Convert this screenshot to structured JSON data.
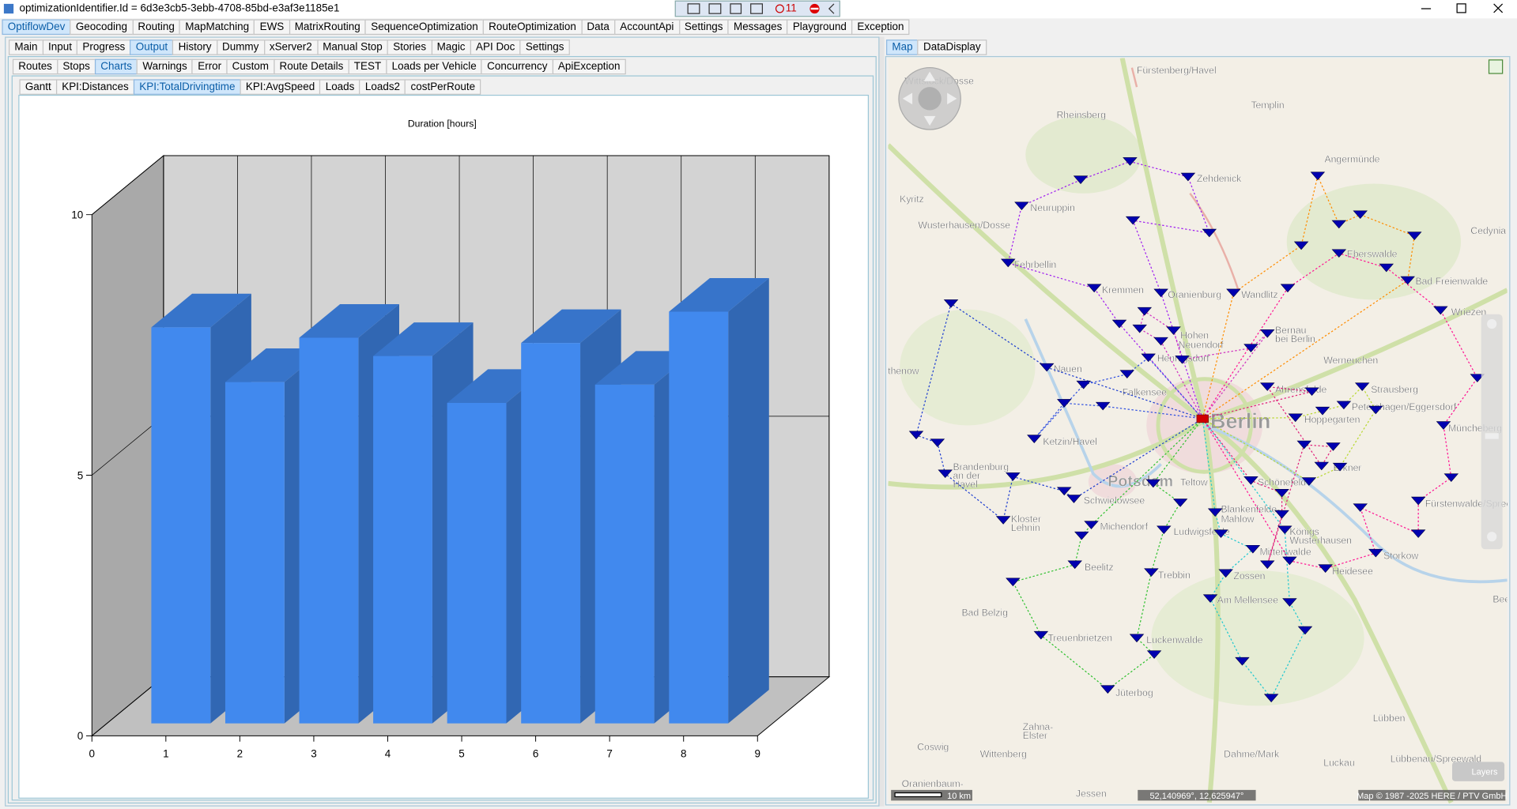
{
  "window": {
    "title": "optimizationIdentifier.Id = 6d3e3cb5-3ebb-4708-85bd-e3af3e1185e1",
    "badge": "11"
  },
  "menu": {
    "items": [
      "OptiflowDev",
      "Geocoding",
      "Routing",
      "MapMatching",
      "EWS",
      "MatrixRouting",
      "SequenceOptimization",
      "RouteOptimization",
      "Data",
      "AccountApi",
      "Settings",
      "Messages",
      "Playground",
      "Exception"
    ],
    "selected": 0
  },
  "main_tabs": {
    "items": [
      "Main",
      "Input",
      "Progress",
      "Output",
      "History",
      "Dummy",
      "xServer2",
      "Manual Stop",
      "Stories",
      "Magic",
      "API Doc",
      "Settings"
    ],
    "selected": 3
  },
  "output_tabs": {
    "items": [
      "Routes",
      "Stops",
      "Charts",
      "Warnings",
      "Error",
      "Custom",
      "Route Details",
      "TEST",
      "Loads per Vehicle",
      "Concurrency",
      "ApiException"
    ],
    "selected": 2
  },
  "chart_tabs": {
    "items": [
      "Gantt",
      "KPI:Distances",
      "KPI:TotalDrivingtime",
      "KPI:AvgSpeed",
      "Loads",
      "Loads2",
      "costPerRoute"
    ],
    "selected": 2
  },
  "chart_data": {
    "type": "bar3d",
    "title": "Duration [hours]",
    "x": [
      1,
      2,
      3,
      4,
      5,
      6,
      7,
      8
    ],
    "values": [
      7.6,
      6.55,
      7.4,
      7.05,
      6.15,
      7.3,
      6.5,
      7.9
    ],
    "color": "#4189ee",
    "xlim": [
      0,
      9
    ],
    "xticks": [
      0,
      1,
      2,
      3,
      4,
      5,
      6,
      7,
      8,
      9
    ],
    "ylim": [
      0,
      10
    ],
    "yticks": [
      0,
      5,
      10
    ],
    "grid": true
  },
  "map_panel": {
    "tabs": {
      "items": [
        "Map",
        "DataDisplay"
      ],
      "selected": 0
    },
    "labels": [
      "Fürstenberg/Havel",
      "Wittstock/Dosse",
      "Templin",
      "Rheinsberg",
      "Angermünde",
      "Zehdenick",
      "Kyritz",
      "Neuruppin",
      "Wusterhausen/Dosse",
      "Cedynia",
      "Eberswalde",
      "Fehrbellin",
      "Bad Freienwalde",
      "Kremmen",
      "Oranienburg",
      "Wandlitz",
      "Wriezen",
      "Bernau",
      "bei Berlin",
      "Hohen",
      "Neuendorf",
      "Hennigsdorf",
      "Werneuchen",
      "Nauen",
      "Rathenow",
      "Falkensee",
      "Ahrensfelde",
      "Strausberg",
      "Hoppegarten",
      "Petershagen/Eggersdorf",
      "Ketzin/Havel",
      "Müncheberg",
      "Erkner",
      "Brandenburg",
      "an der",
      "Havel",
      "Potsdam",
      "Teltow",
      "Schönefeld",
      "Schwielowsee",
      "Fürstenwalde/Spree",
      "Blankenfelde-",
      "Mahlow",
      "Kloster",
      "Lehnin",
      "Michendorf",
      "Königs",
      "Wusterhausen",
      "Ludwigsfelde",
      "Mittenwalde",
      "Storkow",
      "Beelitz",
      "Heidesee",
      "Zossen",
      "Trebbin",
      "Am Mellensee",
      "Beesk",
      "Bad Belzig",
      "Treuenbrietzen",
      "Luckenwalde",
      "Jüterbog",
      "Lübben",
      "Zahna-",
      "Elster",
      "Coswig",
      "Wittenberg",
      "Dahme/Mark",
      "Lübbenau/Spreewald",
      "Luckau",
      "Oranienbaum-",
      "Jessen",
      "Berlin"
    ],
    "scale": "10 km",
    "coordinates": "52,140969°, 12,625947°",
    "copyright": "Map © 1987 -2025 HERE / PTV GmbH",
    "layers": "Layers"
  }
}
